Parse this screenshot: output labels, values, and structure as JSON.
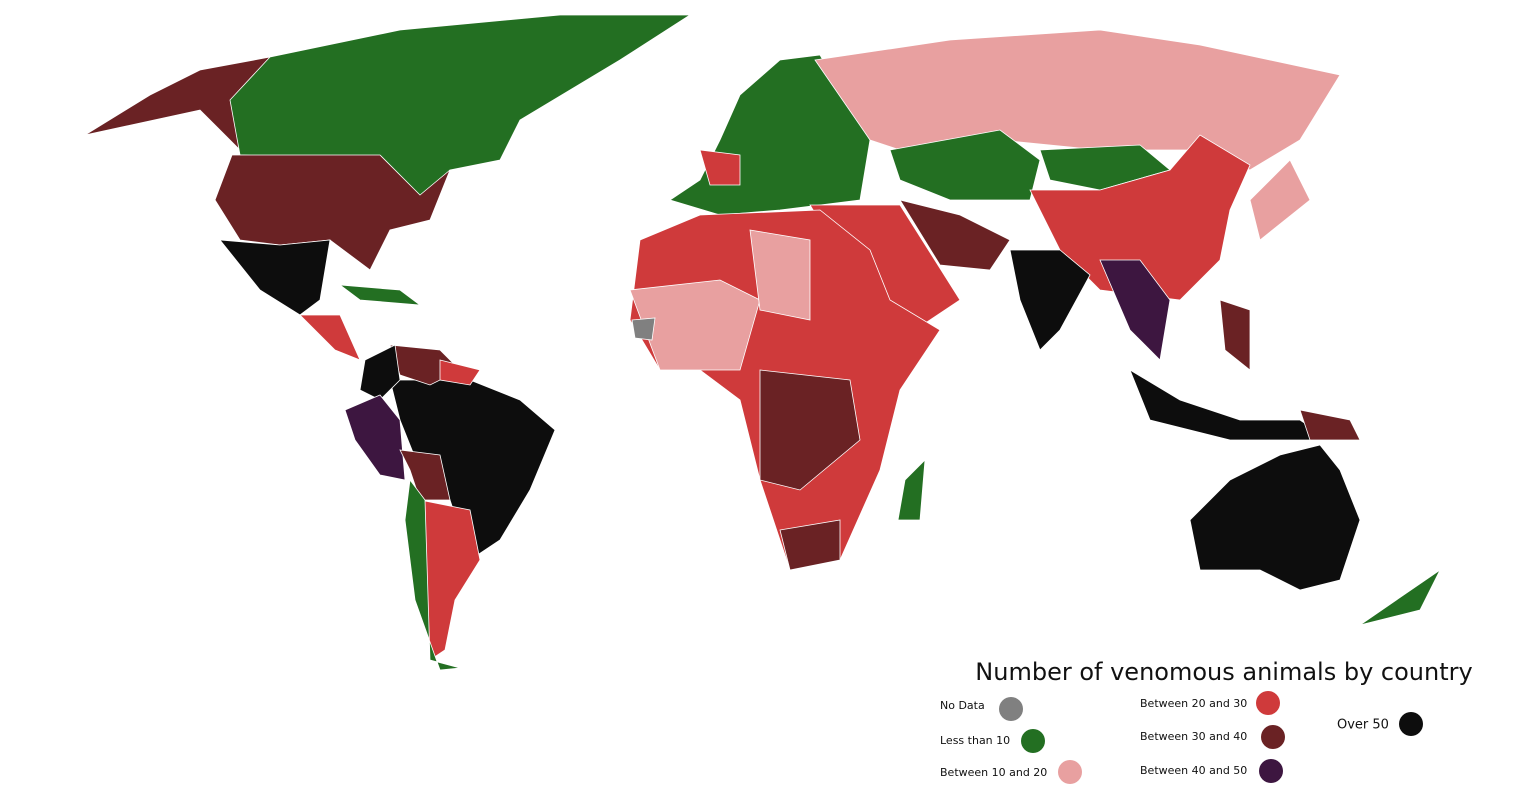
{
  "title": "Number of venomous animals by country",
  "legend": [
    {
      "label": "No Data",
      "color": "#808080"
    },
    {
      "label": "Less than 10",
      "color": "#236f22"
    },
    {
      "label": "Between 10 and 20",
      "color": "#e8a0a0"
    },
    {
      "label": "Between 20 and 30",
      "color": "#cf3a3b"
    },
    {
      "label": "Between 30 and 40",
      "color": "#6a2224"
    },
    {
      "label": "Between 40 and 50",
      "color": "#3d1640"
    },
    {
      "label": "Over 50",
      "color": "#0d0d0d"
    }
  ]
}
